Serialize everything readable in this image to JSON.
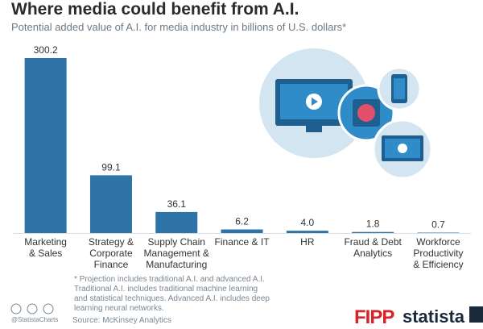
{
  "chart_data": {
    "type": "bar",
    "title": "Where media could benefit from A.I.",
    "subtitle": "Potential added value of A.I. for media industry in billions of U.S. dollars*",
    "categories": [
      "Marketing\n& Sales",
      "Strategy &\nCorporate\nFinance",
      "Supply Chain\nManagement &\nManufacturing",
      "Finance & IT",
      "HR",
      "Fraud & Debt\nAnalytics",
      "Workforce\nProductivity\n& Efficiency"
    ],
    "values": [
      300.2,
      99.1,
      36.1,
      6.2,
      4.0,
      1.8,
      0.7
    ],
    "value_labels": [
      "300.2",
      "99.1",
      "36.1",
      "6.2",
      "4.0",
      "1.8",
      "0.7"
    ],
    "color": "#2f74a7",
    "footnote": "* Projection includes traditional A.I. and advanced A.I.\nTraditional A.I. includes traditional machine learning\nand statistical techniques. Advanced A.I. includes deep\nlearning neural networks.",
    "source": "Source: McKinsey Analytics",
    "handle": "@StatistaCharts",
    "partner": "FIPP",
    "brand": "statista"
  }
}
